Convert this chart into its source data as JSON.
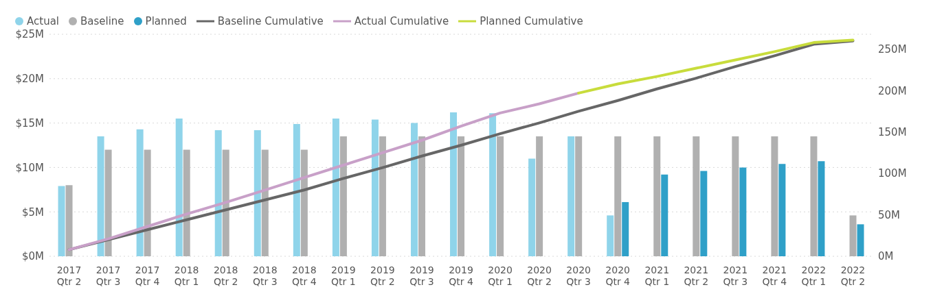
{
  "chart_data": {
    "type": "bar",
    "categories": [
      "2017 Qtr 2",
      "2017 Qtr 3",
      "2017 Qtr 4",
      "2018 Qtr 1",
      "2018 Qtr 2",
      "2018 Qtr 3",
      "2018 Qtr 4",
      "2019 Qtr 1",
      "2019 Qtr 2",
      "2019 Qtr 3",
      "2019 Qtr 4",
      "2020 Qtr 1",
      "2020 Qtr 2",
      "2020 Qtr 3",
      "2020 Qtr 4",
      "2021 Qtr 1",
      "2021 Qtr 2",
      "2021 Qtr 3",
      "2021 Qtr 4",
      "2022 Qtr 1",
      "2022 Qtr 2"
    ],
    "series": [
      {
        "name": "Actual",
        "color": "#8fd4ea",
        "values": [
          7.9,
          13.5,
          14.3,
          15.5,
          14.2,
          14.2,
          14.9,
          15.5,
          15.4,
          15.0,
          16.2,
          16.1,
          11.0,
          13.5,
          4.6,
          null,
          null,
          null,
          null,
          null,
          null
        ]
      },
      {
        "name": "Baseline",
        "color": "#b0b0b0",
        "values": [
          8.0,
          12.0,
          12.0,
          12.0,
          12.0,
          12.0,
          12.0,
          13.5,
          13.5,
          13.5,
          13.5,
          13.5,
          13.5,
          13.5,
          13.5,
          13.5,
          13.5,
          13.5,
          13.5,
          13.5,
          4.6
        ]
      },
      {
        "name": "Planned",
        "color": "#2fa0c8",
        "values": [
          null,
          null,
          null,
          null,
          null,
          null,
          null,
          null,
          null,
          null,
          null,
          null,
          null,
          null,
          6.1,
          9.2,
          9.6,
          10.0,
          10.4,
          10.7,
          3.6
        ]
      },
      {
        "name": "Baseline Cumulative",
        "type": "line",
        "axis": "y2",
        "color": "#666666",
        "values": [
          8,
          20,
          32,
          44,
          56,
          68,
          80,
          94,
          107,
          121,
          134,
          148,
          161,
          175,
          188,
          202,
          215,
          229,
          242,
          256,
          260
        ]
      },
      {
        "name": "Actual Cumulative",
        "type": "line",
        "axis": "y2",
        "color": "#c8a0c8",
        "values": [
          8,
          21,
          36,
          51,
          65,
          80,
          95,
          110,
          125,
          140,
          157,
          173,
          184,
          197,
          null,
          null,
          null,
          null,
          null,
          null,
          null
        ]
      },
      {
        "name": "Planned Cumulative",
        "type": "line",
        "axis": "y2",
        "color": "#c8dc3c",
        "values": [
          null,
          null,
          null,
          null,
          null,
          null,
          null,
          null,
          null,
          null,
          null,
          null,
          null,
          197,
          208,
          217,
          227,
          237,
          247,
          258,
          261
        ]
      }
    ],
    "ylim": [
      0,
      25
    ],
    "yticks": [
      {
        "value": 0,
        "label": "$0M"
      },
      {
        "value": 5,
        "label": "$5M"
      },
      {
        "value": 10,
        "label": "$10M"
      },
      {
        "value": 15,
        "label": "$15M"
      },
      {
        "value": 20,
        "label": "$20M"
      },
      {
        "value": 25,
        "label": "$25M"
      }
    ],
    "y2lim": [
      0,
      268
    ],
    "y2ticks": [
      {
        "value": 0,
        "label": "0M"
      },
      {
        "value": 50,
        "label": "50M"
      },
      {
        "value": 100,
        "label": "100M"
      },
      {
        "value": 150,
        "label": "150M"
      },
      {
        "value": 200,
        "label": "200M"
      },
      {
        "value": 250,
        "label": "250M"
      }
    ],
    "grid": "y",
    "legend": "top left",
    "marker": "none",
    "line_style": "solid"
  }
}
